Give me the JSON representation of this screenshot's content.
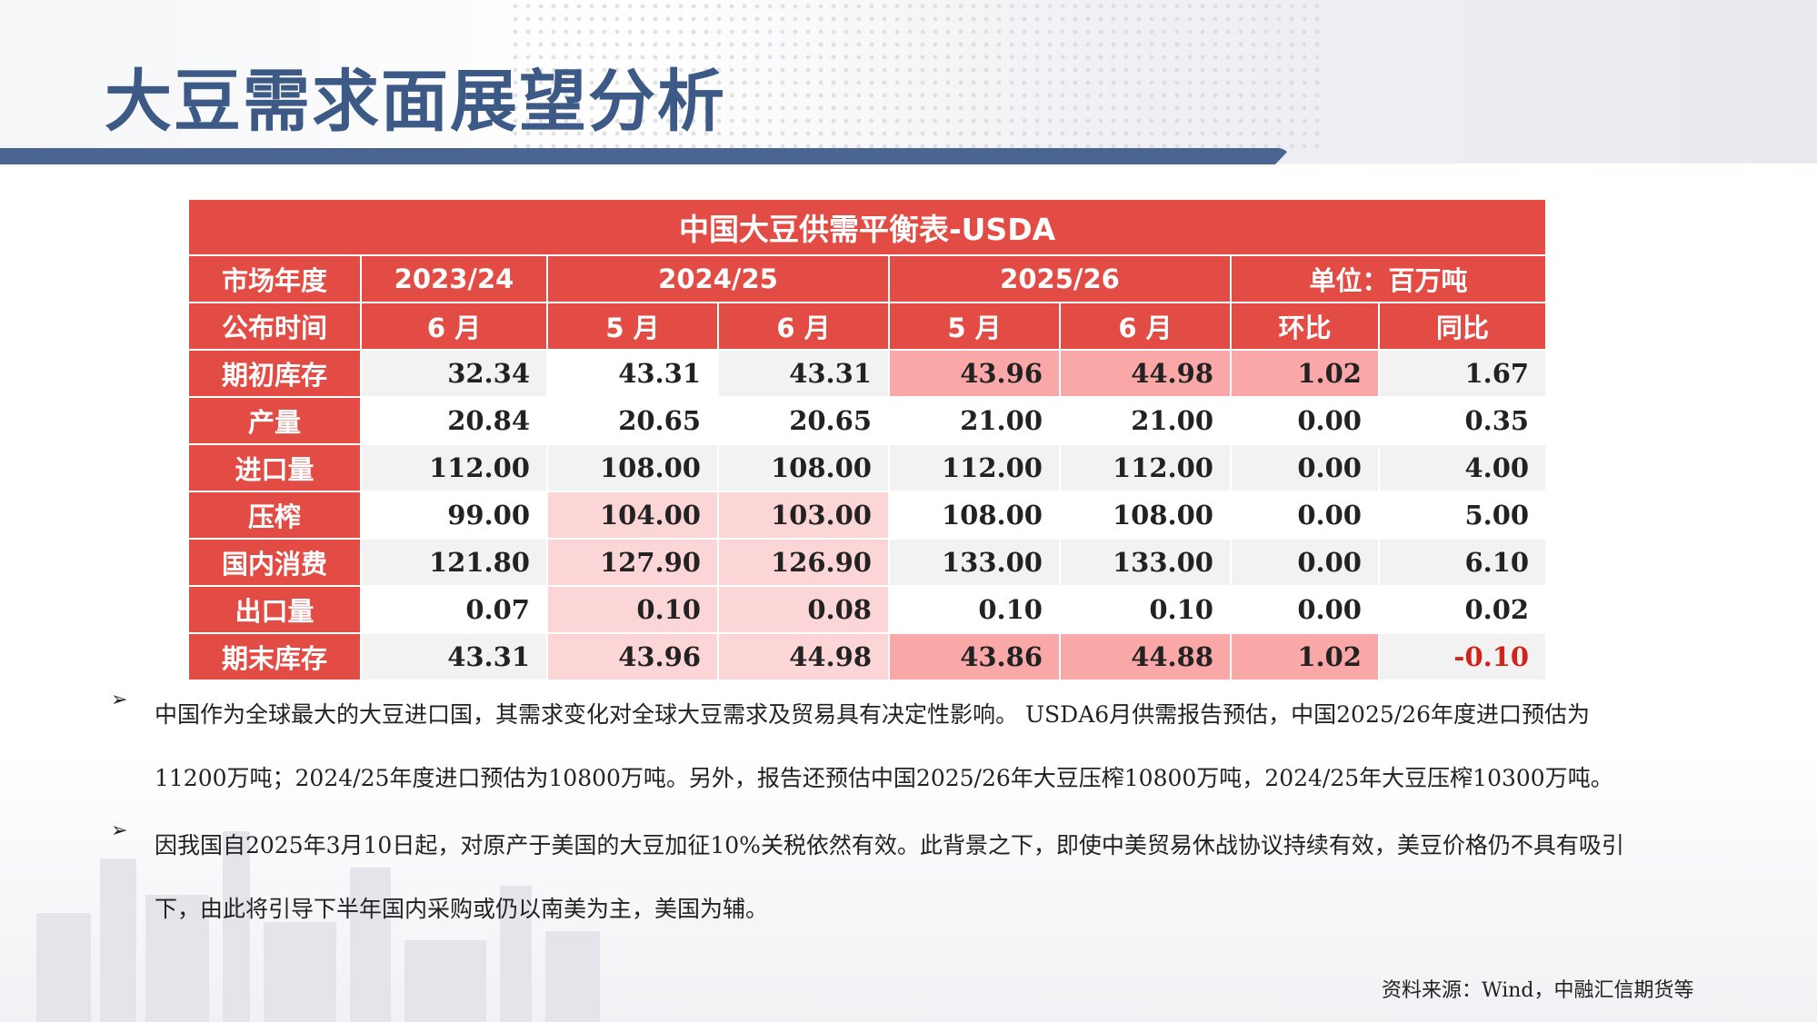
{
  "page": {
    "title": "大豆需求面展望分析"
  },
  "table": {
    "caption": "中国大豆供需平衡表-USDA",
    "header_market_year": {
      "label": "市场年度",
      "y2023": "2023/24",
      "y2024": "2024/25",
      "y2025": "2025/26",
      "unit": "单位：百万吨"
    },
    "header_publish": {
      "label": "公布时间",
      "cols": [
        "6 月",
        "5 月",
        "6 月",
        "5 月",
        "6 月",
        "环比",
        "同比"
      ]
    },
    "rows": [
      {
        "label": "期初库存",
        "values": [
          "32.34",
          "43.31",
          "43.31",
          "43.96",
          "44.98",
          "1.02",
          "1.67"
        ]
      },
      {
        "label": "产量",
        "values": [
          "20.84",
          "20.65",
          "20.65",
          "21.00",
          "21.00",
          "0.00",
          "0.35"
        ]
      },
      {
        "label": "进口量",
        "values": [
          "112.00",
          "108.00",
          "108.00",
          "112.00",
          "112.00",
          "0.00",
          "4.00"
        ]
      },
      {
        "label": "压榨",
        "values": [
          "99.00",
          "104.00",
          "103.00",
          "108.00",
          "108.00",
          "0.00",
          "5.00"
        ]
      },
      {
        "label": "国内消费",
        "values": [
          "121.80",
          "127.90",
          "126.90",
          "133.00",
          "133.00",
          "0.00",
          "6.10"
        ]
      },
      {
        "label": "出口量",
        "values": [
          "0.07",
          "0.10",
          "0.08",
          "0.10",
          "0.10",
          "0.00",
          "0.02"
        ]
      },
      {
        "label": "期末库存",
        "values": [
          "43.31",
          "43.96",
          "44.98",
          "43.86",
          "44.88",
          "1.02",
          "-0.10"
        ]
      }
    ],
    "colors": {
      "header_red": "#e34c44",
      "highlight_strong": "#f9a7a7",
      "highlight_light": "#fcd6d6",
      "negative_red": "#d2231b"
    }
  },
  "bullets": [
    "中国作为全球最大的大豆进口国，其需求变化对全球大豆需求及贸易具有决定性影响。 USDA6月供需报告预估，中国2025/26年度进口预估为11200万吨；2024/25年度进口预估为10800万吨。另外，报告还预估中国2025/26年大豆压榨10800万吨，2024/25年大豆压榨10300万吨。",
    "因我国自2025年3月10日起，对原产于美国的大豆加征10%关税依然有效。此背景之下，即使中美贸易休战协议持续有效，美豆价格仍不具有吸引下，由此将引导下半年国内采购或仍以南美为主，美国为辅。"
  ],
  "source": "资料来源：Wind，中融汇信期货等"
}
